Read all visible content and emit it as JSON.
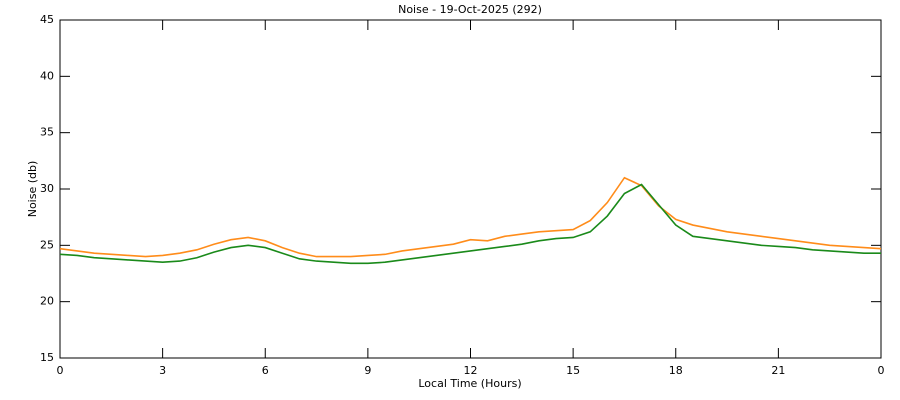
{
  "chart_data": {
    "type": "line",
    "title": "Noise - 19-Oct-2025 (292)",
    "x_label": "Local Time (Hours)",
    "y_label": "Noise (db)",
    "x": [
      0,
      0.5,
      1,
      1.5,
      2,
      2.5,
      3,
      3.5,
      4,
      4.5,
      5,
      5.5,
      6,
      6.5,
      7,
      7.5,
      8,
      8.5,
      9,
      9.5,
      10,
      10.5,
      11,
      11.5,
      12,
      12.5,
      13,
      13.5,
      14,
      14.5,
      15,
      15.5,
      16,
      16.5,
      17,
      17.5,
      18,
      18.5,
      19,
      19.5,
      20,
      20.5,
      21,
      21.5,
      22,
      22.5,
      23,
      23.5,
      24
    ],
    "series": [
      {
        "color": "#ff8c1a",
        "values": [
          24.7,
          24.5,
          24.3,
          24.2,
          24.1,
          24.0,
          24.1,
          24.3,
          24.6,
          25.1,
          25.5,
          25.7,
          25.4,
          24.8,
          24.3,
          24.0,
          24.0,
          24.0,
          24.1,
          24.2,
          24.5,
          24.7,
          24.9,
          25.1,
          25.5,
          25.4,
          25.8,
          26.0,
          26.2,
          26.3,
          26.4,
          27.2,
          28.8,
          31.0,
          30.3,
          28.5,
          27.3,
          26.8,
          26.5,
          26.2,
          26.0,
          25.8,
          25.6,
          25.4,
          25.2,
          25.0,
          24.9,
          24.8,
          24.7
        ]
      },
      {
        "color": "#1a8a1a",
        "values": [
          24.2,
          24.1,
          23.9,
          23.8,
          23.7,
          23.6,
          23.5,
          23.6,
          23.9,
          24.4,
          24.8,
          25.0,
          24.8,
          24.3,
          23.8,
          23.6,
          23.5,
          23.4,
          23.4,
          23.5,
          23.7,
          23.9,
          24.1,
          24.3,
          24.5,
          24.7,
          24.9,
          25.1,
          25.4,
          25.6,
          25.7,
          26.2,
          27.6,
          29.6,
          30.4,
          28.6,
          26.8,
          25.8,
          25.6,
          25.4,
          25.2,
          25.0,
          24.9,
          24.8,
          24.6,
          24.5,
          24.4,
          24.3,
          24.3
        ]
      }
    ],
    "xlim": [
      0,
      24
    ],
    "xticks": [
      0,
      3,
      6,
      9,
      12,
      15,
      18,
      21,
      {
        "value": 24,
        "label": "0"
      }
    ],
    "ylim": [
      15,
      45
    ],
    "yticks": [
      15,
      20,
      25,
      30,
      35,
      40,
      45
    ]
  }
}
